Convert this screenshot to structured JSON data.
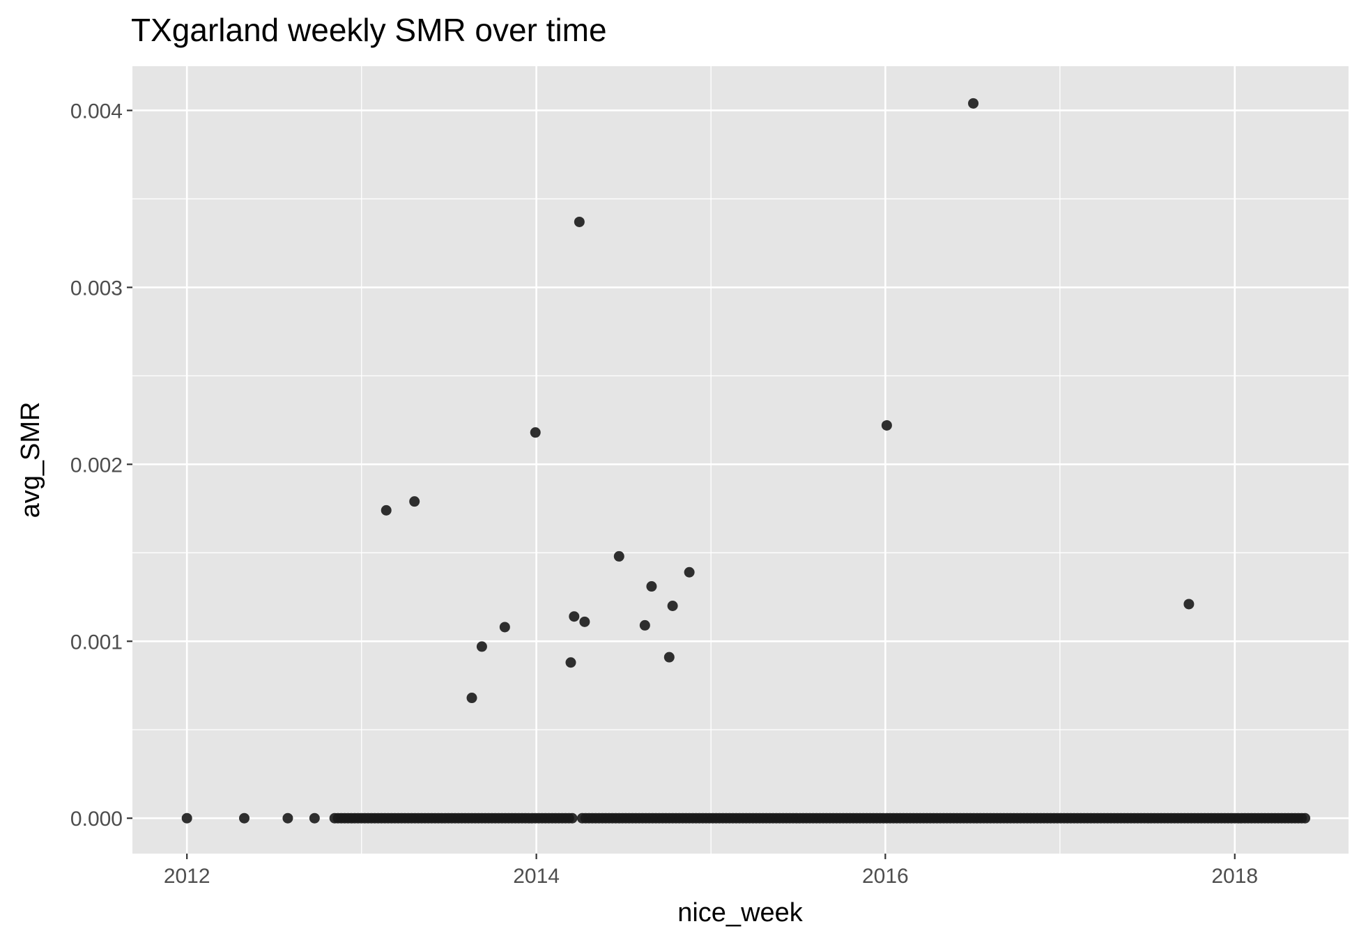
{
  "chart_data": {
    "type": "scatter",
    "title": "TXgarland weekly SMR over time",
    "xlabel": "nice_week",
    "ylabel": "avg_SMR",
    "x_ticks": [
      "2012",
      "2014",
      "2016",
      "2018"
    ],
    "y_ticks": [
      "0.000",
      "0.001",
      "0.002",
      "0.003",
      "0.004"
    ],
    "xlim": [
      "2011-09-09",
      "2018-08-27"
    ],
    "ylim": [
      -0.0002,
      0.00425
    ],
    "grid": true,
    "legend": "none",
    "colors": {
      "panel": "#e5e5e5",
      "grid": "#ffffff",
      "point": "#1a1a1a"
    },
    "zero_series": {
      "points": [
        "2012-01-01",
        "2012-04-30",
        "2012-07-30",
        "2012-09-24",
        "2012-11-05 to 2013-01-28 weekly",
        "2013-02-04 to 2013-08-12 weekly",
        "2013-08-19 to 2014-03-17 weekly",
        "2014-04-07 to 2014-11-17 weekly",
        "2014-11-24 to 2016-06-27 weekly",
        "2016-07-04 to 2017-09-11 weekly",
        "2017-09-18 to 2018-05-28 weekly"
      ],
      "y": 0
    },
    "series": [
      {
        "points": [
          {
            "x": "2013-02-21",
            "y": 0.00174
          },
          {
            "x": "2013-04-21",
            "y": 0.00179
          },
          {
            "x": "2013-08-19",
            "y": 0.00068
          },
          {
            "x": "2013-09-09",
            "y": 0.00097
          },
          {
            "x": "2013-10-27",
            "y": 0.00108
          },
          {
            "x": "2013-12-30",
            "y": 0.00218
          },
          {
            "x": "2014-03-14",
            "y": 0.00088
          },
          {
            "x": "2014-03-21",
            "y": 0.00114
          },
          {
            "x": "2014-04-01",
            "y": 0.00337
          },
          {
            "x": "2014-04-12",
            "y": 0.00111
          },
          {
            "x": "2014-06-23",
            "y": 0.00148
          },
          {
            "x": "2014-08-16",
            "y": 0.00109
          },
          {
            "x": "2014-08-30",
            "y": 0.00131
          },
          {
            "x": "2014-10-06",
            "y": 0.00091
          },
          {
            "x": "2014-10-13",
            "y": 0.0012
          },
          {
            "x": "2014-11-17",
            "y": 0.00139
          },
          {
            "x": "2016-01-04",
            "y": 0.00222
          },
          {
            "x": "2016-07-03",
            "y": 0.00404
          },
          {
            "x": "2017-09-27",
            "y": 0.00121
          }
        ]
      }
    ]
  }
}
